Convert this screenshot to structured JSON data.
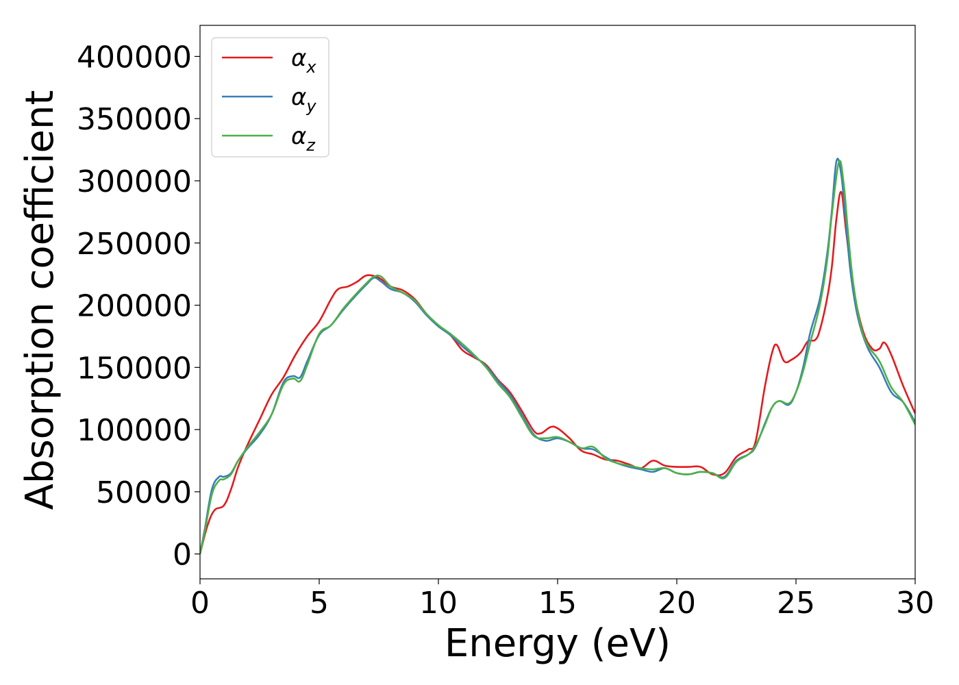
{
  "chart_data": {
    "type": "line",
    "title": "",
    "xlabel": "Energy (eV)",
    "ylabel": "Absorption coefficient",
    "xlim": [
      0,
      30
    ],
    "ylim": [
      -20000,
      425000
    ],
    "xticks": [
      0,
      5,
      10,
      15,
      20,
      25,
      30
    ],
    "yticks": [
      0,
      50000,
      100000,
      150000,
      200000,
      250000,
      300000,
      350000,
      400000
    ],
    "grid": false,
    "legend_position": "top-left",
    "series": [
      {
        "name": "α",
        "subscript": "x",
        "color": "#e41a1c",
        "x": [
          0,
          0.3,
          0.6,
          1.0,
          1.3,
          1.6,
          2.0,
          2.5,
          3.0,
          3.5,
          4.0,
          4.5,
          5.0,
          5.5,
          5.8,
          6.2,
          6.6,
          7.0,
          7.5,
          8.0,
          8.5,
          9.0,
          9.5,
          10.0,
          10.5,
          11.0,
          11.5,
          12.0,
          12.5,
          13.0,
          13.5,
          14.0,
          14.3,
          14.7,
          15.0,
          15.5,
          16.0,
          16.5,
          17.0,
          17.5,
          18.0,
          18.5,
          19.0,
          19.5,
          20.0,
          20.5,
          21.0,
          21.5,
          22.0,
          22.5,
          23.0,
          23.3,
          23.7,
          24.0,
          24.2,
          24.5,
          24.8,
          25.2,
          25.5,
          25.8,
          26.0,
          26.3,
          26.5,
          26.7,
          26.9,
          27.1,
          27.4,
          27.8,
          28.2,
          28.5,
          28.7,
          29.0,
          29.5,
          30.0
        ],
        "y": [
          0,
          22000,
          35000,
          39000,
          52000,
          70000,
          88000,
          108000,
          128000,
          142000,
          160000,
          175000,
          187000,
          205000,
          213000,
          215000,
          219000,
          224000,
          222000,
          215000,
          212000,
          205000,
          193000,
          183000,
          176000,
          164000,
          158000,
          152000,
          140000,
          130000,
          115000,
          99000,
          97000,
          102000,
          101000,
          93000,
          83000,
          80000,
          76000,
          75000,
          72000,
          69000,
          75000,
          71000,
          70000,
          70000,
          70000,
          64000,
          65000,
          78000,
          84000,
          90000,
          135000,
          162000,
          168000,
          155000,
          156000,
          162000,
          171000,
          172000,
          180000,
          205000,
          230000,
          270000,
          291000,
          260000,
          215000,
          180000,
          165000,
          165000,
          170000,
          160000,
          135000,
          113000
        ]
      },
      {
        "name": "α",
        "subscript": "y",
        "color": "#377eb8",
        "x": [
          0,
          0.2,
          0.5,
          0.8,
          1.0,
          1.3,
          1.6,
          2.0,
          2.5,
          3.0,
          3.5,
          3.9,
          4.2,
          4.5,
          5.0,
          5.5,
          6.0,
          6.5,
          7.0,
          7.3,
          7.6,
          8.0,
          8.5,
          9.0,
          9.5,
          10.0,
          10.5,
          11.0,
          11.5,
          12.0,
          12.5,
          13.0,
          13.5,
          14.0,
          14.5,
          15.0,
          15.5,
          16.0,
          16.5,
          17.0,
          17.5,
          18.0,
          18.5,
          19.0,
          19.5,
          20.0,
          20.5,
          21.0,
          21.5,
          22.0,
          22.5,
          23.0,
          23.3,
          23.7,
          24.0,
          24.3,
          24.7,
          25.0,
          25.3,
          25.6,
          26.0,
          26.3,
          26.5,
          26.7,
          26.9,
          27.1,
          27.3,
          27.6,
          28.0,
          28.5,
          29.0,
          29.5,
          30.0
        ],
        "y": [
          0,
          20000,
          52000,
          62000,
          62000,
          65000,
          75000,
          85000,
          96000,
          112000,
          138000,
          143000,
          142000,
          155000,
          176000,
          184000,
          196000,
          207000,
          217000,
          222000,
          219000,
          213000,
          210000,
          203000,
          192000,
          183000,
          176000,
          167000,
          159000,
          151000,
          139000,
          128000,
          112000,
          96000,
          91000,
          93000,
          90000,
          85000,
          84000,
          78000,
          73000,
          70000,
          68000,
          66000,
          69000,
          65000,
          64000,
          66000,
          65000,
          62000,
          75000,
          80000,
          86000,
          105000,
          118000,
          123000,
          120000,
          130000,
          150000,
          178000,
          205000,
          240000,
          275000,
          316000,
          305000,
          265000,
          225000,
          190000,
          166000,
          150000,
          130000,
          122000,
          106000
        ]
      },
      {
        "name": "α",
        "subscript": "z",
        "color": "#4daf4a",
        "x": [
          0,
          0.2,
          0.5,
          0.8,
          1.0,
          1.3,
          1.6,
          2.0,
          2.5,
          3.0,
          3.5,
          3.9,
          4.2,
          4.5,
          5.0,
          5.5,
          6.0,
          6.5,
          7.0,
          7.3,
          7.6,
          8.0,
          8.5,
          9.0,
          9.5,
          10.0,
          10.5,
          11.0,
          11.5,
          12.0,
          12.5,
          13.0,
          13.5,
          14.0,
          14.5,
          15.0,
          15.5,
          16.0,
          16.5,
          17.0,
          17.5,
          18.0,
          18.5,
          19.0,
          19.5,
          20.0,
          20.5,
          21.0,
          21.5,
          22.0,
          22.5,
          23.0,
          23.3,
          23.7,
          24.0,
          24.3,
          24.7,
          25.0,
          25.3,
          25.6,
          26.0,
          26.3,
          26.5,
          26.8,
          27.0,
          27.2,
          27.4,
          27.7,
          28.0,
          28.5,
          29.0,
          29.5,
          30.0
        ],
        "y": [
          0,
          18000,
          48000,
          59000,
          60000,
          64000,
          75000,
          86000,
          98000,
          112000,
          136000,
          141000,
          139000,
          152000,
          177000,
          184000,
          197000,
          208000,
          218000,
          223000,
          223000,
          215000,
          210000,
          204000,
          193000,
          184000,
          177000,
          169000,
          160000,
          150000,
          137000,
          126000,
          110000,
          95000,
          93000,
          94000,
          90000,
          85000,
          86000,
          77000,
          73000,
          71000,
          69000,
          68000,
          69000,
          65000,
          64000,
          66000,
          65000,
          61000,
          74000,
          80000,
          87000,
          104000,
          118000,
          123000,
          121000,
          130000,
          147000,
          170000,
          200000,
          235000,
          272000,
          315000,
          298000,
          255000,
          218000,
          185000,
          168000,
          155000,
          134000,
          122000,
          104000
        ]
      }
    ]
  }
}
